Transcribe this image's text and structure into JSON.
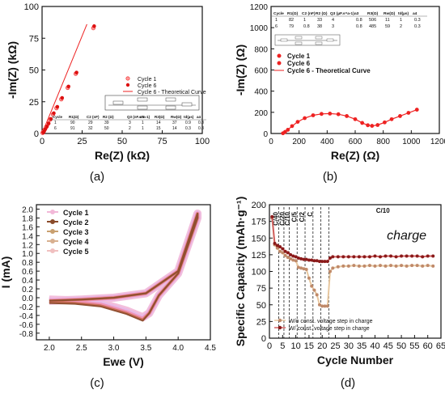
{
  "chart_data": [
    {
      "panel": "(a)",
      "type": "scatter",
      "xlabel": "Re(Z) (kΩ)",
      "ylabel": "-Im(Z) (kΩ)",
      "xlim": [
        0,
        100
      ],
      "ylim": [
        0,
        100
      ],
      "xticks": [
        "0",
        "25",
        "50",
        "75",
        "100"
      ],
      "yticks": [
        "0",
        "25",
        "50",
        "75",
        "100"
      ],
      "legend": [
        "Cycle 1",
        "Cycle 6",
        "Cycle 6 - Theoretical Curve"
      ],
      "series": [
        {
          "name": "Cycle 1",
          "x": [
            0.3,
            0.8,
            1.5,
            2.5,
            3.6,
            5,
            6.8,
            9,
            12,
            16,
            21,
            32
          ],
          "y": [
            0.5,
            1.5,
            3,
            5,
            7.5,
            11,
            15,
            20,
            27,
            36,
            47,
            83
          ]
        },
        {
          "name": "Cycle 6",
          "x": [
            0.3,
            0.8,
            1.5,
            2.5,
            3.6,
            5,
            6.8,
            9,
            12,
            16,
            21,
            32
          ],
          "y": [
            0.7,
            1.8,
            3.4,
            5.5,
            8,
            11.5,
            16,
            21,
            28,
            37,
            48,
            84.5
          ]
        },
        {
          "name": "Cycle 6 - Theoretical Curve",
          "x": [
            0,
            28
          ],
          "y": [
            0,
            86
          ]
        }
      ],
      "table": {
        "headers": [
          "Cycle",
          "R1(Ω)",
          "C2 (nF)",
          "R2 (Ω)",
          "Q3 (nF.s^a-1)",
          "a3",
          "R3(Ω)",
          "Rw(Ω)",
          "td(µs)",
          "a4"
        ],
        "rows": [
          [
            "1",
            "90",
            "29",
            "39",
            "3",
            "1",
            "14",
            "37",
            "0.9",
            "0.8"
          ],
          [
            "6",
            "91",
            "32",
            "50",
            "2",
            "1",
            "15",
            "14",
            "0.3",
            "0.8"
          ]
        ]
      }
    },
    {
      "panel": "(b)",
      "type": "scatter",
      "xlabel": "Re(Z) (Ω)",
      "ylabel": "-Im(Z) (Ω)",
      "xlim": [
        0,
        1200
      ],
      "ylim": [
        0,
        1200
      ],
      "xticks": [
        "0",
        "200",
        "400",
        "600",
        "800",
        "1000",
        "1200"
      ],
      "yticks": [
        "0",
        "200",
        "400",
        "600",
        "800",
        "1000",
        "1200"
      ],
      "legend": [
        "Cycle 1",
        "Cycle 6",
        "Cycle 6 - Theoretical Curve"
      ],
      "series": [
        {
          "name": "Cycle 6",
          "x": [
            85,
            100,
            120,
            150,
            190,
            240,
            300,
            360,
            420,
            480,
            540,
            600,
            650,
            690,
            720,
            760,
            810,
            860,
            920,
            980,
            1040
          ],
          "y": [
            2,
            15,
            35,
            70,
            110,
            145,
            172,
            185,
            188,
            182,
            165,
            135,
            100,
            78,
            72,
            80,
            105,
            135,
            165,
            195,
            225
          ]
        }
      ],
      "table": {
        "headers": [
          "Cycle",
          "R1(Ω)",
          "C2 (nF)",
          "R2 (Ω)",
          "Q3 (µF.s^a-1)",
          "a3",
          "R3(Ω)",
          "Rw(Ω)",
          "td(µs)",
          "a4"
        ],
        "rows": [
          [
            "1",
            "82",
            "1",
            "33",
            "4",
            "0.8",
            "506",
            "11",
            "1",
            "0.3"
          ],
          [
            "6",
            "79",
            "0.8",
            "38",
            "3",
            "0.8",
            "485",
            "59",
            "2",
            "0.3"
          ]
        ]
      }
    },
    {
      "panel": "(c)",
      "type": "line",
      "xlabel": "Ewe (V)",
      "ylabel": "I (mA)",
      "xlim": [
        1.8,
        4.5
      ],
      "ylim": [
        -0.95,
        2.1
      ],
      "xticks": [
        "2.0",
        "2.5",
        "3.0",
        "3.5",
        "4.0",
        "4.5"
      ],
      "yticks": [
        "-0.8",
        "-0.6",
        "-0.4",
        "-0.2",
        "0.0",
        "0.2",
        "0.4",
        "0.6",
        "0.8",
        "1.0",
        "1.2",
        "1.4",
        "1.6",
        "1.8",
        "2.0"
      ],
      "legend": [
        "Cycle 1",
        "Cycle 2",
        "Cycle 3",
        "Cycle 4",
        "Cycle 5"
      ],
      "series": [
        {
          "name": "Cycle 1",
          "x": [
            2.0,
            2.5,
            3.0,
            3.5,
            4.0,
            4.3,
            4.3,
            4.0,
            3.7,
            3.55,
            3.45,
            3.2,
            2.8,
            2.4,
            2.0
          ],
          "y": [
            -0.07,
            -0.04,
            0.0,
            0.1,
            0.6,
            1.9,
            1.8,
            0.55,
            0.05,
            -0.35,
            -0.5,
            -0.35,
            -0.18,
            -0.12,
            -0.1
          ]
        }
      ]
    },
    {
      "panel": "(d)",
      "type": "scatter",
      "xlabel": "Cycle Number",
      "ylabel": "Specific Capacity (mAh·g⁻¹)",
      "xlim": [
        0,
        65
      ],
      "ylim": [
        0,
        200
      ],
      "xticks": [
        "0",
        "5",
        "10",
        "15",
        "20",
        "25",
        "30",
        "35",
        "40",
        "45",
        "50",
        "55",
        "60",
        "65"
      ],
      "yticks": [
        "0",
        "25",
        "50",
        "75",
        "100",
        "125",
        "150",
        "175",
        "200"
      ],
      "rate_labels": [
        "C/40",
        "C/20",
        "C/10",
        "C/5",
        "C/2",
        "C",
        "C/10"
      ],
      "annotation": "charge",
      "legend": [
        "W/o const. voltage step in charge",
        "W/ const. voltage step in charge"
      ],
      "series": [
        {
          "name": "W/o const. voltage step in charge",
          "x": [
            1,
            2,
            3,
            4,
            5,
            6,
            7,
            8,
            9,
            10,
            11,
            12,
            13,
            14,
            15,
            16,
            17,
            18,
            19,
            20,
            21,
            22,
            23,
            24,
            26,
            28,
            30,
            32,
            34,
            36,
            38,
            40,
            42,
            44,
            46,
            48,
            50,
            52,
            54,
            56,
            58,
            60,
            62
          ],
          "y": [
            180,
            140,
            135,
            130,
            128,
            124,
            121,
            119,
            117,
            116,
            106,
            105,
            104,
            103,
            90,
            78,
            72,
            65,
            50,
            48,
            48,
            48,
            100,
            105,
            107,
            108,
            108,
            109,
            108,
            108,
            109,
            108,
            109,
            108,
            109,
            108,
            109,
            108,
            109,
            109,
            108,
            109,
            108
          ]
        },
        {
          "name": "W/ const. voltage step in charge",
          "x": [
            1,
            2,
            3,
            4,
            5,
            6,
            7,
            8,
            9,
            10,
            11,
            12,
            13,
            14,
            15,
            16,
            17,
            18,
            19,
            20,
            21,
            22,
            23,
            24,
            26,
            28,
            30,
            32,
            34,
            36,
            38,
            40,
            42,
            44,
            46,
            48,
            50,
            52,
            54,
            56,
            58,
            60,
            62
          ],
          "y": [
            182,
            142,
            139,
            137,
            134,
            130,
            128,
            125,
            123,
            122,
            120,
            119,
            118,
            118,
            117,
            117,
            116,
            116,
            115,
            115,
            115,
            115,
            120,
            122,
            122,
            122,
            122,
            122,
            122,
            122,
            122,
            123,
            122,
            123,
            123,
            122,
            123,
            123,
            123,
            123,
            122,
            123,
            123
          ]
        }
      ]
    }
  ],
  "labels": {
    "a": "(a)",
    "b": "(b)",
    "c": "(c)",
    "d": "(d)"
  }
}
